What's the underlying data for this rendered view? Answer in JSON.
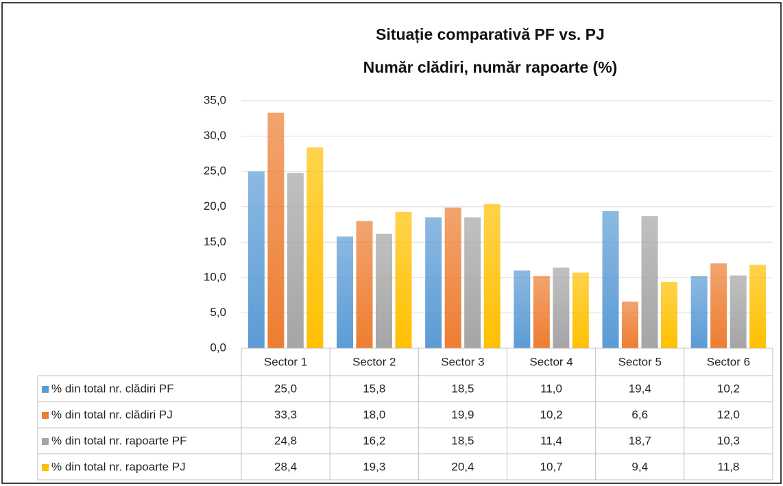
{
  "chart_data": {
    "type": "bar",
    "title": [
      "Situație comparativă  PF vs. PJ",
      "Număr clădiri, număr rapoarte (%)"
    ],
    "categories": [
      "Sector 1",
      "Sector 2",
      "Sector 3",
      "Sector 4",
      "Sector 5",
      "Sector 6"
    ],
    "series": [
      {
        "name": "% din total nr. clădiri PF",
        "color": "#5b9bd5",
        "values": [
          25.0,
          15.8,
          18.5,
          11.0,
          19.4,
          10.2
        ],
        "value_labels": [
          "25,0",
          "15,8",
          "18,5",
          "11,0",
          "19,4",
          "10,2"
        ]
      },
      {
        "name": "% din total nr. clădiri PJ",
        "color": "#ed7d31",
        "values": [
          33.3,
          18.0,
          19.9,
          10.2,
          6.6,
          12.0
        ],
        "value_labels": [
          "33,3",
          "18,0",
          "19,9",
          "10,2",
          "6,6",
          "12,0"
        ]
      },
      {
        "name": "% din total nr. rapoarte PF",
        "color": "#a5a5a5",
        "values": [
          24.8,
          16.2,
          18.5,
          11.4,
          18.7,
          10.3
        ],
        "value_labels": [
          "24,8",
          "16,2",
          "18,5",
          "11,4",
          "18,7",
          "10,3"
        ]
      },
      {
        "name": "% din total nr. rapoarte PJ",
        "color": "#ffc000",
        "values": [
          28.4,
          19.3,
          20.4,
          10.7,
          9.4,
          11.8
        ],
        "value_labels": [
          "28,4",
          "19,3",
          "20,4",
          "10,7",
          "9,4",
          "11,8"
        ]
      }
    ],
    "ylim": [
      0,
      35
    ],
    "yticks": [
      {
        "value": 0,
        "label": "0,0"
      },
      {
        "value": 5,
        "label": "5,0"
      },
      {
        "value": 10,
        "label": "10,0"
      },
      {
        "value": 15,
        "label": "15,0"
      },
      {
        "value": 20,
        "label": "20,0"
      },
      {
        "value": 25,
        "label": "25,0"
      },
      {
        "value": 30,
        "label": "30,0"
      },
      {
        "value": 35,
        "label": "35,0"
      }
    ],
    "grid": true
  }
}
